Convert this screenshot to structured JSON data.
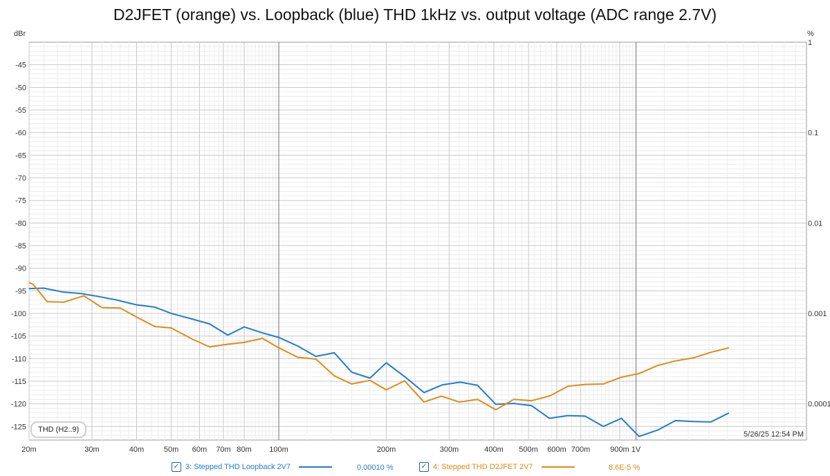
{
  "title": "D2JFET (orange) vs. Loopback (blue) THD 1kHz vs. output voltage (ADC range 2.7V)",
  "timestamp": "5/26/25 12:54 PM",
  "badge": "THD (H2..9)",
  "legend": [
    {
      "check": "✓",
      "label": "3: Stepped THD Loopback 2V7",
      "value": "0.00010 %",
      "color": "#1e7bd6"
    },
    {
      "check": "✓",
      "label": "4: Stepped THD D2JFET 2V7",
      "value": "8.6E-5 %",
      "color": "#e08a16"
    }
  ],
  "chart_data": {
    "type": "line",
    "x_scale": "log",
    "x_range": [
      0.02,
      3.0
    ],
    "y_range": [
      -128,
      -40
    ],
    "ylabel_left": "dBr",
    "ylabel_right": "%",
    "x_ticks": [
      {
        "v": 0.02,
        "label": "20m"
      },
      {
        "v": 0.03,
        "label": "30m"
      },
      {
        "v": 0.04,
        "label": "40m"
      },
      {
        "v": 0.05,
        "label": "50m"
      },
      {
        "v": 0.06,
        "label": "60m"
      },
      {
        "v": 0.07,
        "label": "70m"
      },
      {
        "v": 0.08,
        "label": "80m"
      },
      {
        "v": 0.1,
        "label": "100m"
      },
      {
        "v": 0.2,
        "label": "200m"
      },
      {
        "v": 0.3,
        "label": "300m"
      },
      {
        "v": 0.4,
        "label": "400m"
      },
      {
        "v": 0.5,
        "label": "500m"
      },
      {
        "v": 0.6,
        "label": "600m"
      },
      {
        "v": 0.7,
        "label": "700m"
      },
      {
        "v": 0.9,
        "label": "900m"
      },
      {
        "v": 1.0,
        "label": "1V"
      }
    ],
    "y_ticks_left": [
      -45,
      -50,
      -55,
      -60,
      -65,
      -70,
      -75,
      -80,
      -85,
      -90,
      -95,
      -100,
      -105,
      -110,
      -115,
      -120,
      -125
    ],
    "y_ticks_right": [
      {
        "db": -40,
        "label": "1"
      },
      {
        "db": -60,
        "label": "0.1"
      },
      {
        "db": -80,
        "label": "0.01"
      },
      {
        "db": -100,
        "label": "0.001"
      },
      {
        "db": -120,
        "label": "0.0001"
      }
    ],
    "grid": true,
    "series": [
      {
        "color": "#1e7bd6",
        "x": [
          0.02,
          0.022,
          0.025,
          0.028,
          0.031,
          0.035,
          0.04,
          0.045,
          0.05,
          0.057,
          0.064,
          0.072,
          0.08,
          0.09,
          0.1,
          0.113,
          0.127,
          0.143,
          0.16,
          0.18,
          0.2,
          0.227,
          0.255,
          0.287,
          0.322,
          0.36,
          0.405,
          0.455,
          0.51,
          0.572,
          0.643,
          0.72,
          0.81,
          0.91,
          1.02,
          1.15,
          1.29,
          1.45,
          1.62,
          1.82
        ],
        "y": [
          -94.5,
          -94.4,
          -95.3,
          -95.6,
          -96.2,
          -97,
          -98.1,
          -98.6,
          -100,
          -101.2,
          -102.3,
          -104.8,
          -103,
          -104.3,
          -105.3,
          -107.2,
          -109.5,
          -108.7,
          -113,
          -114.3,
          -110.9,
          -114.2,
          -117.5,
          -115.8,
          -115.2,
          -115.9,
          -120.1,
          -119.9,
          -120.4,
          -123.2,
          -122.6,
          -122.7,
          -125,
          -123.2,
          -127.2,
          -125.8,
          -123.7,
          -123.9,
          -124,
          -122
        ],
        "name": "3: Stepped THD Loopback 2V7"
      },
      {
        "color": "#e08a16",
        "x": [
          0.02,
          0.0205,
          0.0225,
          0.025,
          0.0285,
          0.032,
          0.036,
          0.04,
          0.045,
          0.05,
          0.057,
          0.064,
          0.072,
          0.08,
          0.09,
          0.1,
          0.113,
          0.127,
          0.143,
          0.16,
          0.18,
          0.2,
          0.225,
          0.255,
          0.285,
          0.32,
          0.36,
          0.405,
          0.455,
          0.51,
          0.575,
          0.645,
          0.72,
          0.81,
          0.91,
          1.02,
          1.15,
          1.29,
          1.45,
          1.62,
          1.82
        ],
        "y": [
          -93.2,
          -93.5,
          -97.4,
          -97.5,
          -96.1,
          -98.7,
          -98.8,
          -100.8,
          -102.9,
          -103.2,
          -105.6,
          -107.4,
          -106.8,
          -106.4,
          -105.5,
          -107.6,
          -109.7,
          -110.1,
          -113.8,
          -115.6,
          -114.8,
          -116.9,
          -114.9,
          -119.6,
          -118.3,
          -119.6,
          -119,
          -121.3,
          -119,
          -119.3,
          -118.2,
          -116.1,
          -115.7,
          -115.6,
          -114.1,
          -113.3,
          -111.5,
          -110.5,
          -109.8,
          -108.6,
          -107.6
        ],
        "name": "4: Stepped THD D2JFET 2V7"
      }
    ]
  }
}
